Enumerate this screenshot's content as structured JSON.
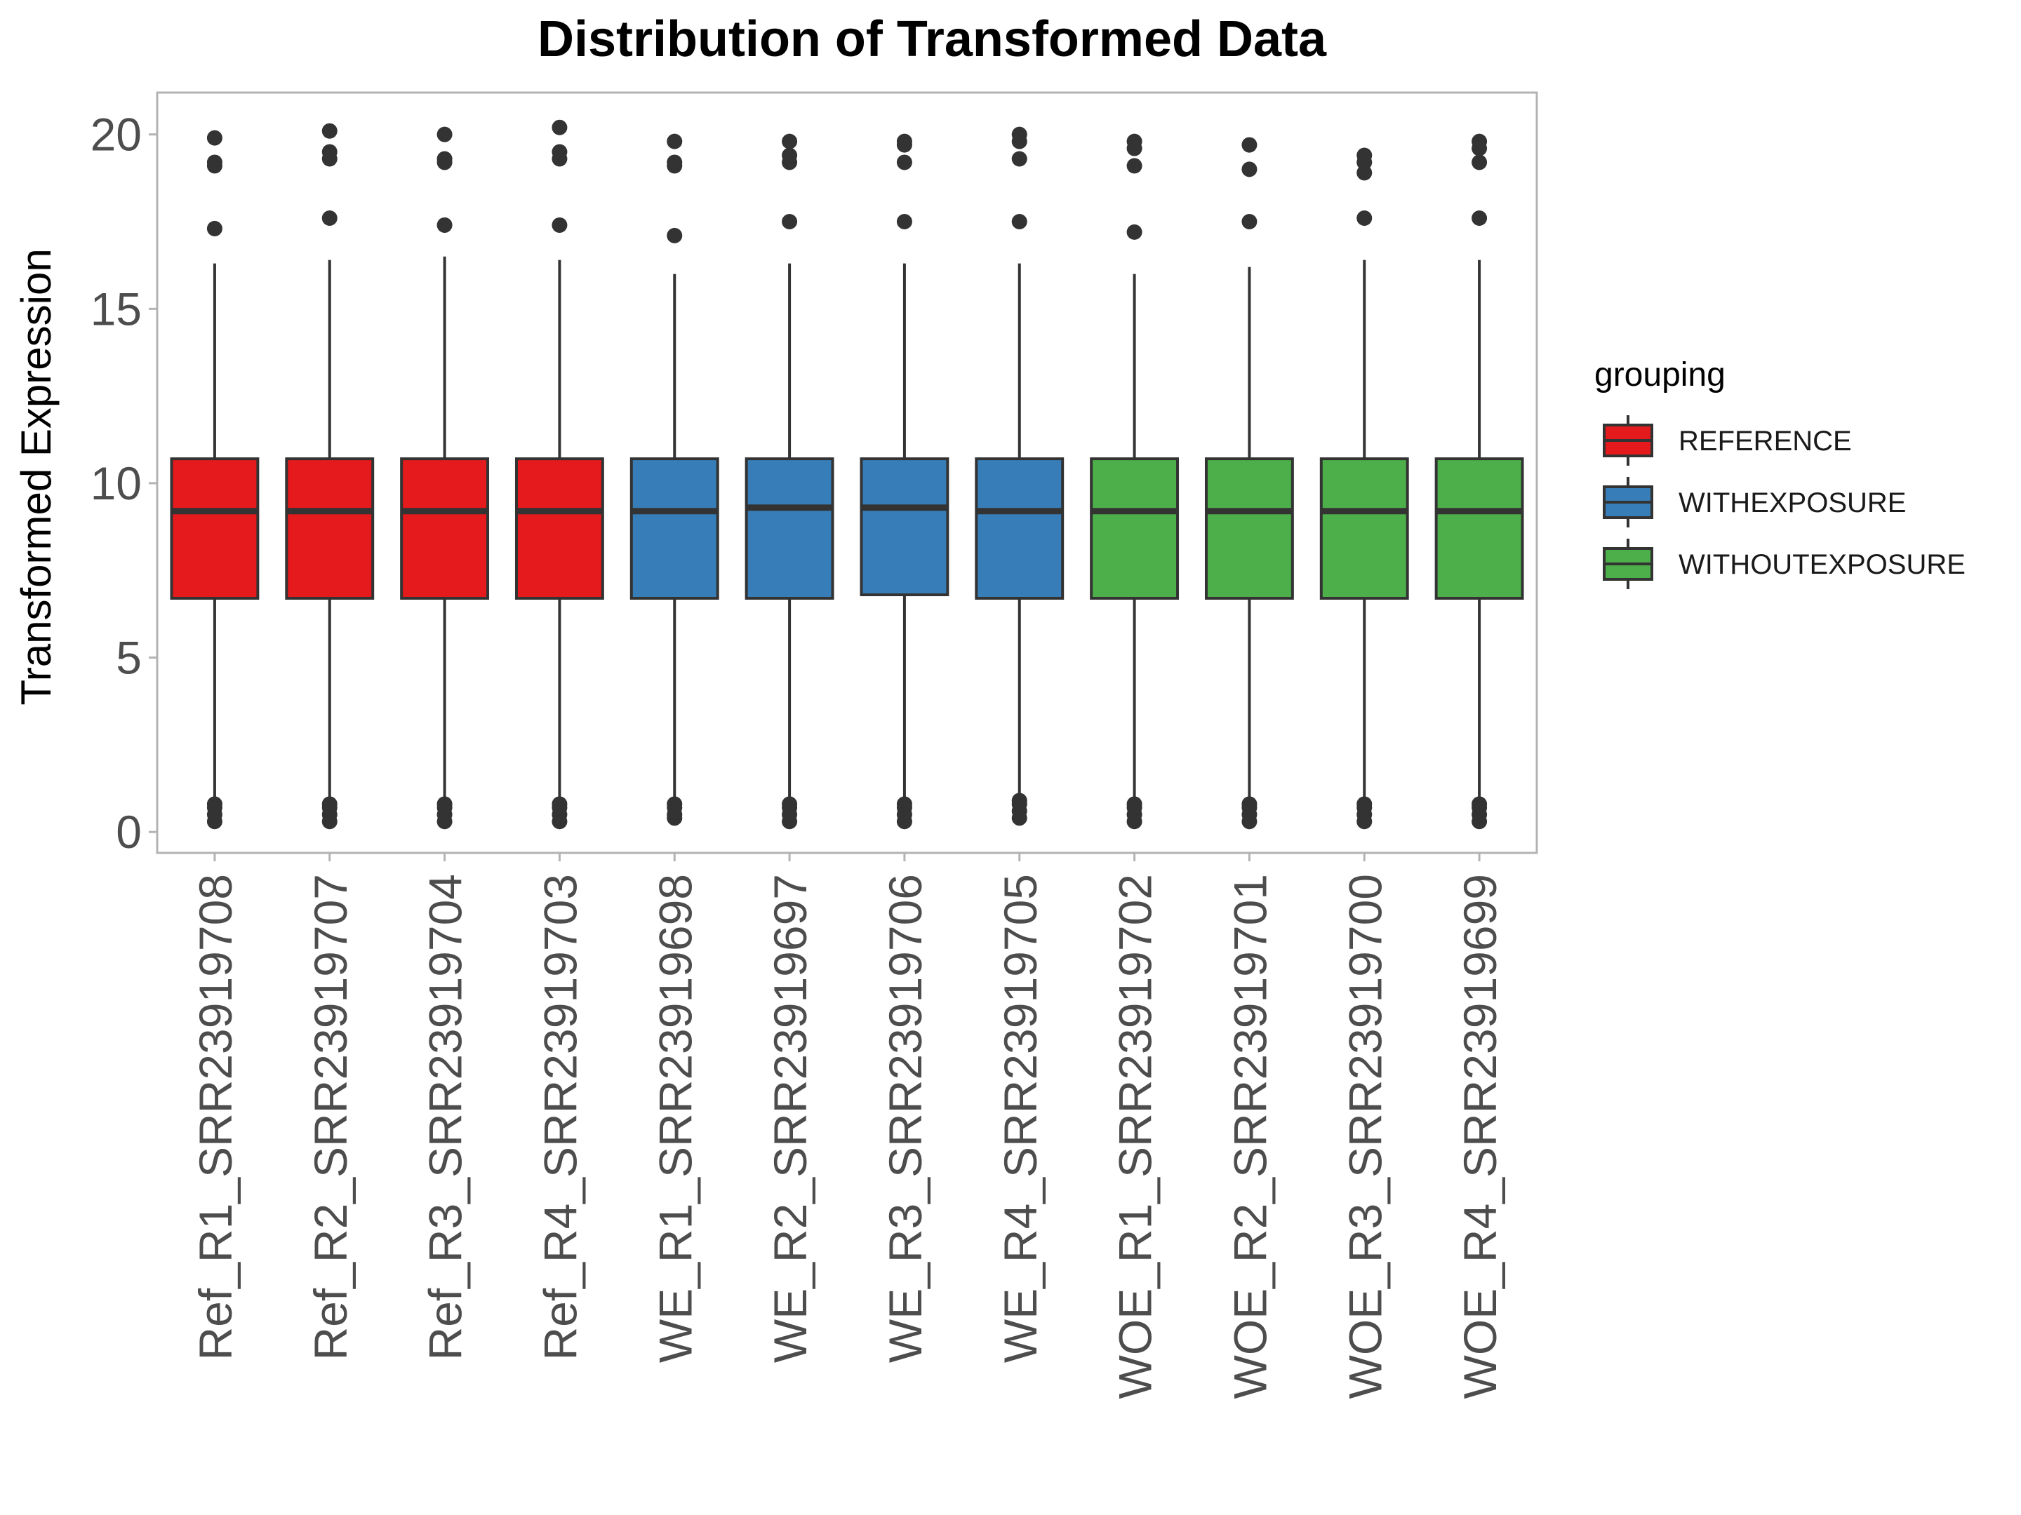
{
  "chart_data": {
    "type": "boxplot",
    "title": "Distribution of Transformed Data",
    "xlabel": "",
    "ylabel": "Transformed Expression",
    "ylim": [
      -0.6,
      21.2
    ],
    "y_ticks": [
      "0",
      "5",
      "10",
      "15",
      "20"
    ],
    "y_tick_values": [
      0,
      5,
      10,
      15,
      20
    ],
    "grid": false,
    "legend": {
      "title": "grouping",
      "position": "right",
      "entries": [
        {
          "label": "REFERENCE",
          "color": "#e41a1c"
        },
        {
          "label": "WITHEXPOSURE",
          "color": "#377eb8"
        },
        {
          "label": "WITHOUTEXPOSURE",
          "color": "#4daf4a"
        }
      ]
    },
    "colors": {
      "box_outline": "#333333",
      "outlier": "#333333",
      "panel_border": "#b3b3b3"
    },
    "samples": [
      {
        "label": "Ref_R1_SRR23919708",
        "group": 0,
        "q1": 6.7,
        "median": 9.2,
        "q3": 10.7,
        "whisker_low": 0.9,
        "whisker_high": 16.3,
        "outliers_high": [
          17.3,
          19.1,
          19.2,
          19.9
        ],
        "outliers_low": [
          0.3,
          0.5,
          0.7,
          0.8
        ]
      },
      {
        "label": "Ref_R2_SRR23919707",
        "group": 0,
        "q1": 6.7,
        "median": 9.2,
        "q3": 10.7,
        "whisker_low": 0.9,
        "whisker_high": 16.4,
        "outliers_high": [
          17.6,
          19.3,
          19.5,
          20.1
        ],
        "outliers_low": [
          0.3,
          0.5,
          0.7,
          0.8
        ]
      },
      {
        "label": "Ref_R3_SRR23919704",
        "group": 0,
        "q1": 6.7,
        "median": 9.2,
        "q3": 10.7,
        "whisker_low": 0.9,
        "whisker_high": 16.5,
        "outliers_high": [
          17.4,
          19.2,
          19.3,
          20.0
        ],
        "outliers_low": [
          0.3,
          0.5,
          0.7,
          0.8
        ]
      },
      {
        "label": "Ref_R4_SRR23919703",
        "group": 0,
        "q1": 6.7,
        "median": 9.2,
        "q3": 10.7,
        "whisker_low": 0.9,
        "whisker_high": 16.4,
        "outliers_high": [
          17.4,
          19.3,
          19.5,
          20.2
        ],
        "outliers_low": [
          0.3,
          0.5,
          0.7,
          0.8
        ]
      },
      {
        "label": "WE_R1_SRR23919698",
        "group": 1,
        "q1": 6.7,
        "median": 9.2,
        "q3": 10.7,
        "whisker_low": 0.9,
        "whisker_high": 16.0,
        "outliers_high": [
          17.1,
          19.1,
          19.2,
          19.8
        ],
        "outliers_low": [
          0.4,
          0.5,
          0.7,
          0.8
        ]
      },
      {
        "label": "WE_R2_SRR23919697",
        "group": 1,
        "q1": 6.7,
        "median": 9.3,
        "q3": 10.7,
        "whisker_low": 0.9,
        "whisker_high": 16.3,
        "outliers_high": [
          17.5,
          19.2,
          19.4,
          19.8
        ],
        "outliers_low": [
          0.3,
          0.5,
          0.7,
          0.8
        ]
      },
      {
        "label": "WE_R3_SRR23919706",
        "group": 1,
        "q1": 6.8,
        "median": 9.3,
        "q3": 10.7,
        "whisker_low": 0.9,
        "whisker_high": 16.3,
        "outliers_high": [
          17.5,
          19.2,
          19.7,
          19.8
        ],
        "outliers_low": [
          0.3,
          0.5,
          0.7,
          0.8
        ]
      },
      {
        "label": "WE_R4_SRR23919705",
        "group": 1,
        "q1": 6.7,
        "median": 9.2,
        "q3": 10.7,
        "whisker_low": 1.0,
        "whisker_high": 16.3,
        "outliers_high": [
          17.5,
          19.3,
          19.8,
          20.0
        ],
        "outliers_low": [
          0.4,
          0.6,
          0.8,
          0.9
        ]
      },
      {
        "label": "WOE_R1_SRR23919702",
        "group": 2,
        "q1": 6.7,
        "median": 9.2,
        "q3": 10.7,
        "whisker_low": 0.9,
        "whisker_high": 16.0,
        "outliers_high": [
          17.2,
          19.1,
          19.6,
          19.8
        ],
        "outliers_low": [
          0.3,
          0.5,
          0.7,
          0.8
        ]
      },
      {
        "label": "WOE_R2_SRR23919701",
        "group": 2,
        "q1": 6.7,
        "median": 9.2,
        "q3": 10.7,
        "whisker_low": 0.9,
        "whisker_high": 16.2,
        "outliers_high": [
          17.5,
          19.0,
          19.7
        ],
        "outliers_low": [
          0.3,
          0.5,
          0.7,
          0.8
        ]
      },
      {
        "label": "WOE_R3_SRR23919700",
        "group": 2,
        "q1": 6.7,
        "median": 9.2,
        "q3": 10.7,
        "whisker_low": 0.9,
        "whisker_high": 16.4,
        "outliers_high": [
          17.6,
          18.9,
          19.2,
          19.4
        ],
        "outliers_low": [
          0.3,
          0.5,
          0.7,
          0.8
        ]
      },
      {
        "label": "WOE_R4_SRR23919699",
        "group": 2,
        "q1": 6.7,
        "median": 9.2,
        "q3": 10.7,
        "whisker_low": 0.9,
        "whisker_high": 16.4,
        "outliers_high": [
          17.6,
          19.2,
          19.6,
          19.8
        ],
        "outliers_low": [
          0.3,
          0.5,
          0.7,
          0.8
        ]
      }
    ]
  }
}
